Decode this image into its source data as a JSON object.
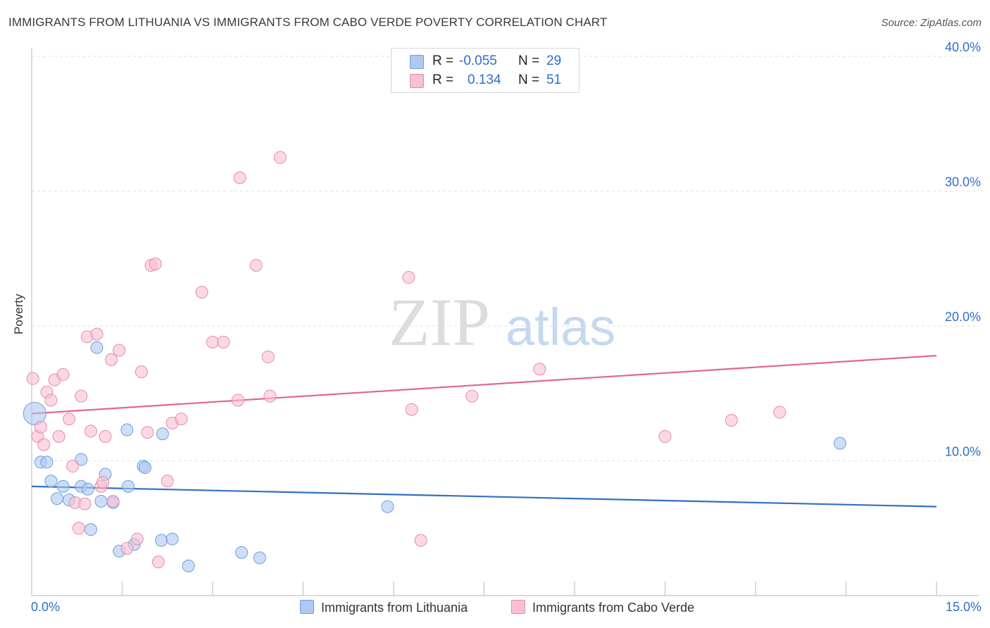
{
  "title": "IMMIGRANTS FROM LITHUANIA VS IMMIGRANTS FROM CABO VERDE POVERTY CORRELATION CHART",
  "source": "Source: ZipAtlas.com",
  "watermark": {
    "zip": "ZIP",
    "atlas": "atlas"
  },
  "legend": {
    "rows": [
      {
        "r_label": "R =",
        "r_value": "-0.055",
        "n_label": "N =",
        "n_value": "29",
        "color": "#aec8f0",
        "border": "#6f9fe0"
      },
      {
        "r_label": "R =",
        "r_value": "0.134",
        "n_label": "N =",
        "n_value": "51",
        "color": "#f8c0d2",
        "border": "#e88aaa"
      }
    ]
  },
  "bottom_legend": [
    {
      "label": "Immigrants from Lithuania",
      "color": "#aec8f0",
      "border": "#6f9fe0"
    },
    {
      "label": "Immigrants from Cabo Verde",
      "color": "#f8c0d2",
      "border": "#e88aaa"
    }
  ],
  "chart_data": {
    "type": "scatter",
    "title": "IMMIGRANTS FROM LITHUANIA VS IMMIGRANTS FROM CABO VERDE POVERTY CORRELATION CHART",
    "xlabel": "",
    "ylabel": "Poverty",
    "xlim": [
      0,
      15
    ],
    "ylim": [
      0,
      40
    ],
    "x_tick_labels": [
      {
        "value": 0,
        "label": "0.0%"
      },
      {
        "value": 15,
        "label": "15.0%"
      }
    ],
    "y_tick_labels": [
      {
        "value": 10,
        "label": "10.0%"
      },
      {
        "value": 20,
        "label": "20.0%"
      },
      {
        "value": 30,
        "label": "30.0%"
      },
      {
        "value": 40,
        "label": "40.0%"
      }
    ],
    "grid": true,
    "series": [
      {
        "name": "Immigrants from Lithuania",
        "color": "#6f9fe0",
        "fill": "#aec8f0",
        "trend": {
          "x": [
            0,
            15
          ],
          "y": [
            8.1,
            6.6
          ]
        },
        "points": [
          {
            "x": 0.05,
            "y": 13.5,
            "big": true
          },
          {
            "x": 0.15,
            "y": 9.9
          },
          {
            "x": 0.25,
            "y": 9.9
          },
          {
            "x": 0.32,
            "y": 8.5
          },
          {
            "x": 0.42,
            "y": 7.2
          },
          {
            "x": 0.52,
            "y": 8.1
          },
          {
            "x": 0.62,
            "y": 7.1
          },
          {
            "x": 0.82,
            "y": 8.1
          },
          {
            "x": 0.82,
            "y": 10.1
          },
          {
            "x": 0.93,
            "y": 7.9
          },
          {
            "x": 0.98,
            "y": 4.9
          },
          {
            "x": 1.08,
            "y": 18.4
          },
          {
            "x": 1.15,
            "y": 7.0
          },
          {
            "x": 1.22,
            "y": 9.0
          },
          {
            "x": 1.35,
            "y": 6.9
          },
          {
            "x": 1.45,
            "y": 3.3
          },
          {
            "x": 1.58,
            "y": 12.3
          },
          {
            "x": 1.6,
            "y": 8.1
          },
          {
            "x": 1.7,
            "y": 3.8
          },
          {
            "x": 1.85,
            "y": 9.6
          },
          {
            "x": 1.88,
            "y": 9.5
          },
          {
            "x": 2.17,
            "y": 12.0
          },
          {
            "x": 2.15,
            "y": 4.1
          },
          {
            "x": 2.33,
            "y": 4.2
          },
          {
            "x": 2.6,
            "y": 2.2
          },
          {
            "x": 3.48,
            "y": 3.2
          },
          {
            "x": 3.78,
            "y": 2.8
          },
          {
            "x": 5.9,
            "y": 6.6
          },
          {
            "x": 13.4,
            "y": 11.3
          }
        ]
      },
      {
        "name": "Immigrants from Cabo Verde",
        "color": "#e88aaa",
        "fill": "#f8c0d2",
        "trend": {
          "x": [
            0,
            15
          ],
          "y": [
            13.5,
            17.8
          ]
        },
        "points": [
          {
            "x": 0.02,
            "y": 16.1
          },
          {
            "x": 0.1,
            "y": 11.8
          },
          {
            "x": 0.15,
            "y": 12.5
          },
          {
            "x": 0.2,
            "y": 11.2
          },
          {
            "x": 0.25,
            "y": 15.1
          },
          {
            "x": 0.32,
            "y": 14.5
          },
          {
            "x": 0.38,
            "y": 16.0
          },
          {
            "x": 0.45,
            "y": 11.8
          },
          {
            "x": 0.52,
            "y": 16.4
          },
          {
            "x": 0.62,
            "y": 13.1
          },
          {
            "x": 0.68,
            "y": 9.6
          },
          {
            "x": 0.72,
            "y": 6.9
          },
          {
            "x": 0.78,
            "y": 5.0
          },
          {
            "x": 0.82,
            "y": 14.8
          },
          {
            "x": 0.88,
            "y": 6.8
          },
          {
            "x": 0.92,
            "y": 19.2
          },
          {
            "x": 0.98,
            "y": 12.2
          },
          {
            "x": 1.08,
            "y": 19.4
          },
          {
            "x": 1.15,
            "y": 8.1
          },
          {
            "x": 1.18,
            "y": 8.4
          },
          {
            "x": 1.22,
            "y": 11.8
          },
          {
            "x": 1.32,
            "y": 17.5
          },
          {
            "x": 1.35,
            "y": 7.0
          },
          {
            "x": 1.45,
            "y": 18.2
          },
          {
            "x": 1.58,
            "y": 3.5
          },
          {
            "x": 1.75,
            "y": 4.2
          },
          {
            "x": 1.82,
            "y": 16.6
          },
          {
            "x": 1.92,
            "y": 12.1
          },
          {
            "x": 1.98,
            "y": 24.5
          },
          {
            "x": 2.05,
            "y": 24.6
          },
          {
            "x": 2.1,
            "y": 2.5
          },
          {
            "x": 2.25,
            "y": 8.5
          },
          {
            "x": 2.33,
            "y": 12.8
          },
          {
            "x": 2.48,
            "y": 13.1
          },
          {
            "x": 2.82,
            "y": 22.5
          },
          {
            "x": 3.0,
            "y": 18.8
          },
          {
            "x": 3.18,
            "y": 18.8
          },
          {
            "x": 3.42,
            "y": 14.5
          },
          {
            "x": 3.45,
            "y": 31.0
          },
          {
            "x": 3.72,
            "y": 24.5
          },
          {
            "x": 3.92,
            "y": 17.7
          },
          {
            "x": 3.95,
            "y": 14.8
          },
          {
            "x": 4.12,
            "y": 32.5
          },
          {
            "x": 6.25,
            "y": 23.6
          },
          {
            "x": 6.3,
            "y": 13.8
          },
          {
            "x": 6.45,
            "y": 4.1
          },
          {
            "x": 7.3,
            "y": 14.8
          },
          {
            "x": 8.42,
            "y": 16.8
          },
          {
            "x": 10.5,
            "y": 11.8
          },
          {
            "x": 11.6,
            "y": 13.0
          },
          {
            "x": 12.4,
            "y": 13.6
          }
        ]
      }
    ]
  }
}
